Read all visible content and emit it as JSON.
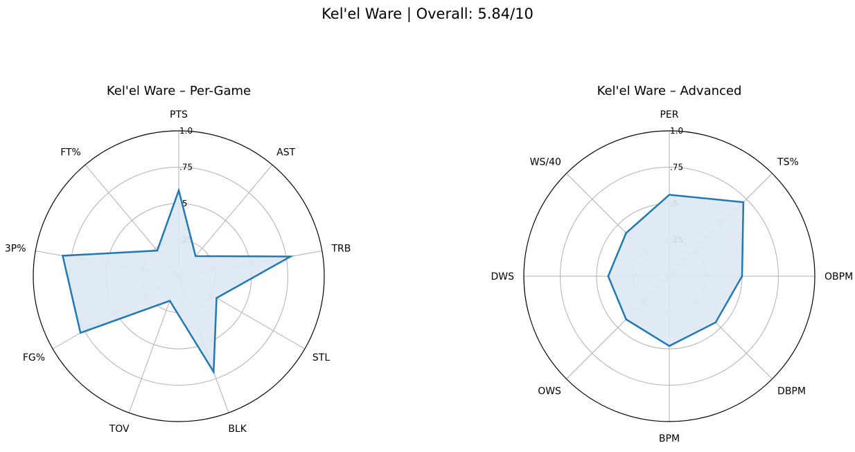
{
  "figure_title": "Kel'el Ware | Overall: 5.84/10",
  "colors": {
    "series_line": "#1f77b4",
    "series_fill": "#dde8f3",
    "grid": "#b0b0b0",
    "frame": "#000000"
  },
  "chart_data": [
    {
      "type": "radar",
      "title": "Kel'el Ware – Per-Game",
      "categories": [
        "PTS",
        "AST",
        "TRB",
        "STL",
        "BLK",
        "TOV",
        "FG%",
        "3P%",
        "FT%"
      ],
      "values": [
        0.59,
        0.18,
        0.78,
        0.3,
        0.7,
        0.18,
        0.78,
        0.81,
        0.23
      ],
      "rlim": [
        0,
        1.0
      ],
      "r_ticks": [
        0.25,
        0.5,
        0.75,
        1.0
      ],
      "r_tick_labels": [
        ".25",
        ".5",
        ".75",
        "1.0"
      ],
      "grid": true
    },
    {
      "type": "radar",
      "title": "Kel'el Ware – Advanced",
      "categories": [
        "PER",
        "TS%",
        "OBPM",
        "DBPM",
        "BPM",
        "OWS",
        "DWS",
        "WS/40"
      ],
      "values": [
        0.56,
        0.72,
        0.5,
        0.45,
        0.48,
        0.42,
        0.42,
        0.42
      ],
      "rlim": [
        0,
        1.0
      ],
      "r_ticks": [
        0.25,
        0.5,
        0.75,
        1.0
      ],
      "r_tick_labels": [
        ".25",
        ".5",
        ".75",
        "1.0"
      ],
      "grid": true
    }
  ]
}
